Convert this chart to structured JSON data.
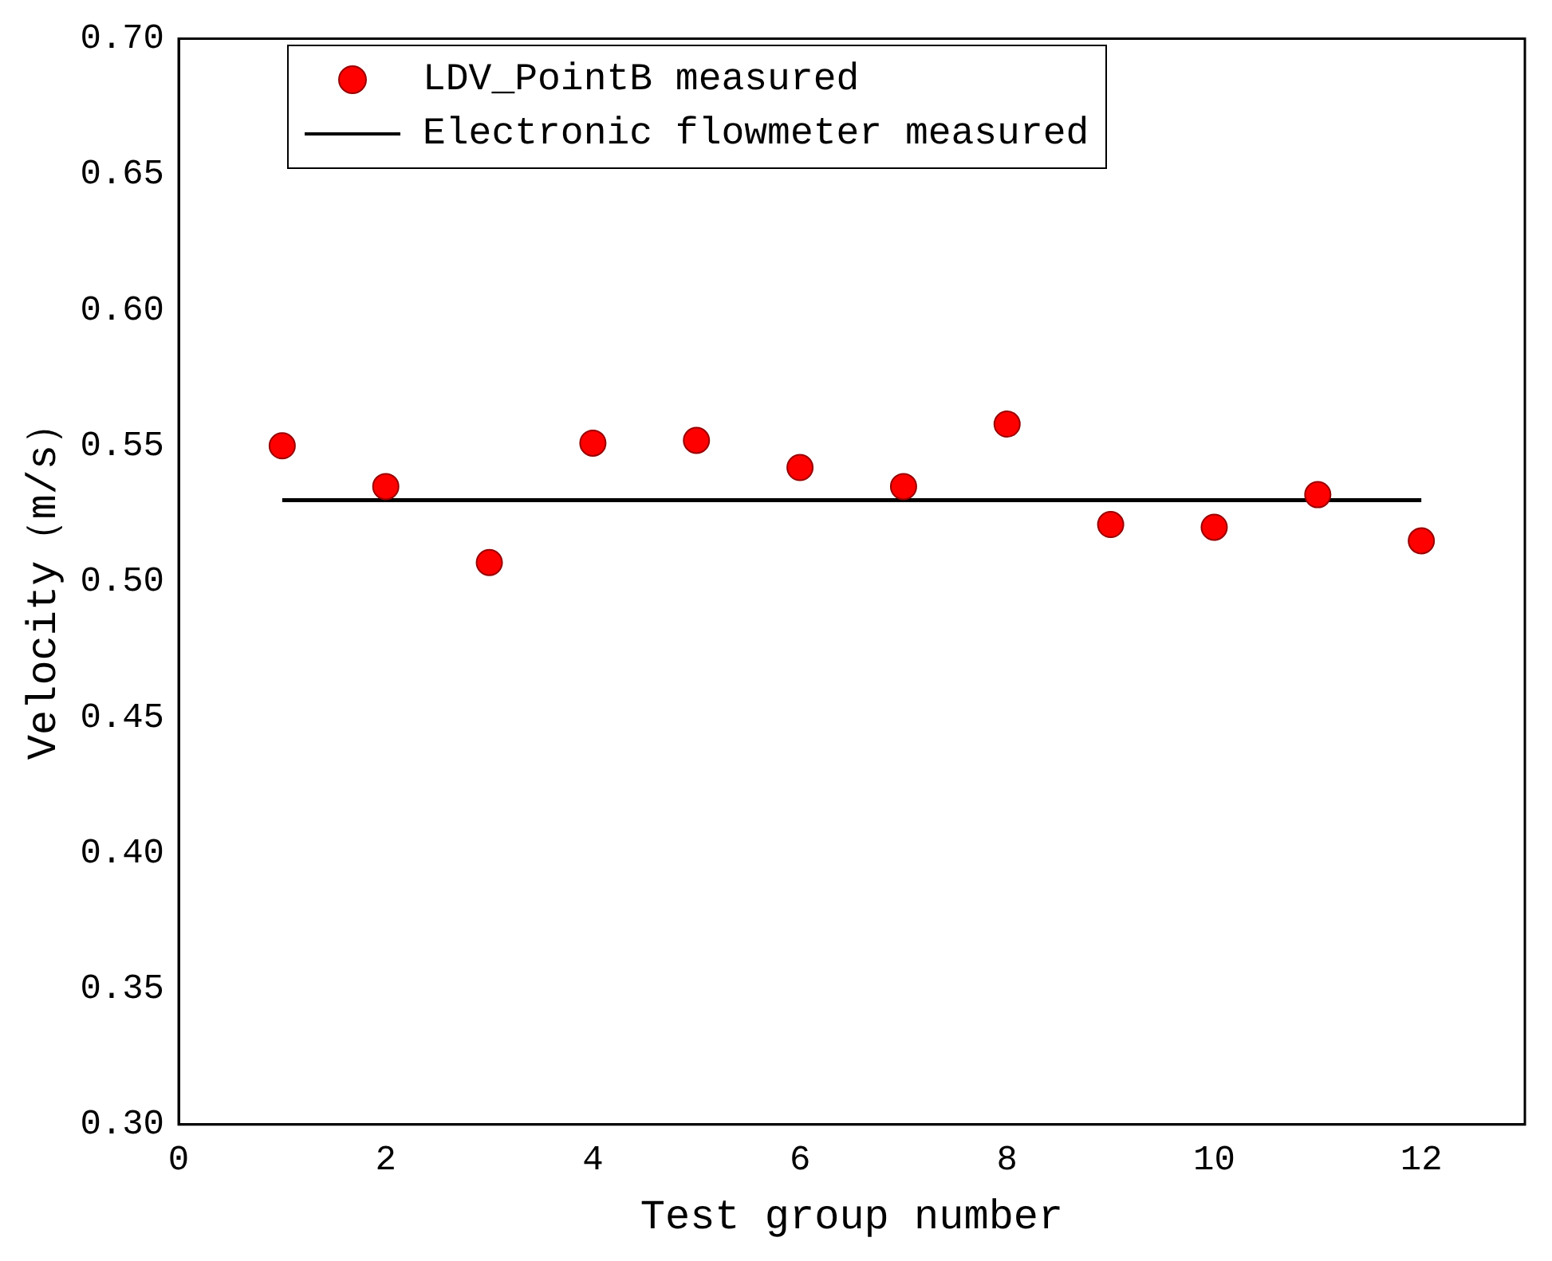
{
  "chart_data": {
    "type": "scatter",
    "xlabel": "Test group number",
    "ylabel": "Velocity（m/s）",
    "xlim": [
      0,
      13
    ],
    "xticks": [
      0,
      2,
      4,
      6,
      8,
      10,
      12
    ],
    "ylim": [
      0.3,
      0.7
    ],
    "yticks": [
      {
        "value": 0.3,
        "label": "0.30"
      },
      0.35,
      {
        "value": 0.4,
        "label": "0.40"
      },
      0.45,
      {
        "value": 0.5,
        "label": "0.50"
      },
      0.55,
      {
        "value": 0.6,
        "label": "0.60"
      },
      0.65,
      {
        "value": 0.7,
        "label": "0.70"
      }
    ],
    "grid": false,
    "legend": "top left",
    "series": [
      {
        "name": "LDV_PointB measured",
        "marker": "circle",
        "color": "#ff0000",
        "x": [
          1,
          2,
          3,
          4,
          5,
          6,
          7,
          8,
          9,
          10,
          11,
          12
        ],
        "values": [
          0.55,
          0.535,
          0.507,
          0.551,
          0.552,
          0.542,
          0.535,
          0.558,
          0.521,
          0.52,
          0.532,
          0.515
        ]
      },
      {
        "name": "Electronic flowmeter measured",
        "type": "line",
        "marker": "none",
        "color": "#000000",
        "line_style": "solid",
        "x": [
          1,
          12
        ],
        "values": [
          0.53,
          0.53
        ]
      }
    ]
  }
}
